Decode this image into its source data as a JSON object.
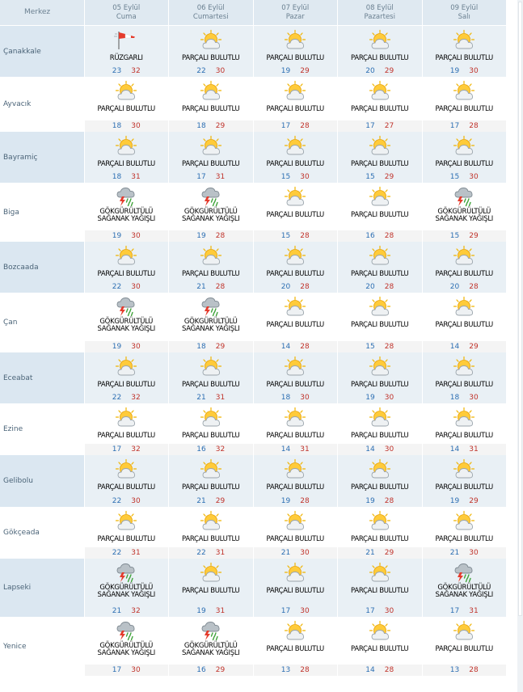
{
  "header": {
    "corner": "Merkez",
    "days": [
      {
        "date": "05 Eylül",
        "name": "Cuma"
      },
      {
        "date": "06 Eylül",
        "name": "Cumartesi"
      },
      {
        "date": "07 Eylül",
        "name": "Pazar"
      },
      {
        "date": "08 Eylül",
        "name": "Pazartesi"
      },
      {
        "date": "09 Eylül",
        "name": "Salı"
      }
    ]
  },
  "rows": [
    {
      "city": "Çanakkale",
      "cells": [
        {
          "icon": "wind-sock-icon",
          "cond": [
            "RÜZGARLI"
          ],
          "min": "23",
          "max": "32"
        },
        {
          "icon": "partly-cloudy-icon",
          "cond": [
            "PARÇALI BULUTLU"
          ],
          "min": "22",
          "max": "30"
        },
        {
          "icon": "partly-cloudy-icon",
          "cond": [
            "PARÇALI BULUTLU"
          ],
          "min": "19",
          "max": "29"
        },
        {
          "icon": "partly-cloudy-icon",
          "cond": [
            "PARÇALI BULUTLU"
          ],
          "min": "20",
          "max": "29"
        },
        {
          "icon": "partly-cloudy-icon",
          "cond": [
            "PARÇALI BULUTLU"
          ],
          "min": "19",
          "max": "30"
        }
      ]
    },
    {
      "city": "Ayvacık",
      "cells": [
        {
          "icon": "partly-cloudy-icon",
          "cond": [
            "PARÇALI BULUTLU"
          ],
          "min": "18",
          "max": "30"
        },
        {
          "icon": "partly-cloudy-icon",
          "cond": [
            "PARÇALI BULUTLU"
          ],
          "min": "18",
          "max": "29"
        },
        {
          "icon": "partly-cloudy-icon",
          "cond": [
            "PARÇALI BULUTLU"
          ],
          "min": "17",
          "max": "28"
        },
        {
          "icon": "partly-cloudy-icon",
          "cond": [
            "PARÇALI BULUTLU"
          ],
          "min": "17",
          "max": "27"
        },
        {
          "icon": "partly-cloudy-icon",
          "cond": [
            "PARÇALI BULUTLU"
          ],
          "min": "17",
          "max": "28"
        }
      ]
    },
    {
      "city": "Bayramiç",
      "cells": [
        {
          "icon": "partly-cloudy-icon",
          "cond": [
            "PARÇALI BULUTLU"
          ],
          "min": "18",
          "max": "31"
        },
        {
          "icon": "partly-cloudy-icon",
          "cond": [
            "PARÇALI BULUTLU"
          ],
          "min": "17",
          "max": "31"
        },
        {
          "icon": "partly-cloudy-icon",
          "cond": [
            "PARÇALI BULUTLU"
          ],
          "min": "15",
          "max": "30"
        },
        {
          "icon": "partly-cloudy-icon",
          "cond": [
            "PARÇALI BULUTLU"
          ],
          "min": "15",
          "max": "29"
        },
        {
          "icon": "partly-cloudy-icon",
          "cond": [
            "PARÇALI BULUTLU"
          ],
          "min": "15",
          "max": "30"
        }
      ]
    },
    {
      "city": "Biga",
      "cells": [
        {
          "icon": "thunderstorm-icon",
          "cond": [
            "GÖKGÜRÜLTÜLÜ",
            "SAĞANAK YAĞIŞLI"
          ],
          "min": "19",
          "max": "30"
        },
        {
          "icon": "thunderstorm-icon",
          "cond": [
            "GÖKGÜRÜLTÜLÜ",
            "SAĞANAK YAĞIŞLI"
          ],
          "min": "19",
          "max": "28"
        },
        {
          "icon": "partly-cloudy-icon",
          "cond": [
            "PARÇALI BULUTLU"
          ],
          "min": "15",
          "max": "28"
        },
        {
          "icon": "partly-cloudy-icon",
          "cond": [
            "PARÇALI BULUTLU"
          ],
          "min": "16",
          "max": "28"
        },
        {
          "icon": "thunderstorm-icon",
          "cond": [
            "GÖKGÜRÜLTÜLÜ",
            "SAĞANAK YAĞIŞLI"
          ],
          "min": "15",
          "max": "29"
        }
      ]
    },
    {
      "city": "Bozcaada",
      "cells": [
        {
          "icon": "partly-cloudy-icon",
          "cond": [
            "PARÇALI BULUTLU"
          ],
          "min": "22",
          "max": "30"
        },
        {
          "icon": "partly-cloudy-icon",
          "cond": [
            "PARÇALI BULUTLU"
          ],
          "min": "21",
          "max": "28"
        },
        {
          "icon": "partly-cloudy-icon",
          "cond": [
            "PARÇALI BULUTLU"
          ],
          "min": "20",
          "max": "28"
        },
        {
          "icon": "partly-cloudy-icon",
          "cond": [
            "PARÇALI BULUTLU"
          ],
          "min": "20",
          "max": "28"
        },
        {
          "icon": "partly-cloudy-icon",
          "cond": [
            "PARÇALI BULUTLU"
          ],
          "min": "20",
          "max": "28"
        }
      ]
    },
    {
      "city": "Çan",
      "cells": [
        {
          "icon": "thunderstorm-icon",
          "cond": [
            "GÖKGÜRÜLTÜLÜ",
            "SAĞANAK YAĞIŞLI"
          ],
          "min": "19",
          "max": "30"
        },
        {
          "icon": "thunderstorm-icon",
          "cond": [
            "GÖKGÜRÜLTÜLÜ",
            "SAĞANAK YAĞIŞLI"
          ],
          "min": "18",
          "max": "29"
        },
        {
          "icon": "partly-cloudy-icon",
          "cond": [
            "PARÇALI BULUTLU"
          ],
          "min": "14",
          "max": "28"
        },
        {
          "icon": "partly-cloudy-icon",
          "cond": [
            "PARÇALI BULUTLU"
          ],
          "min": "15",
          "max": "28"
        },
        {
          "icon": "partly-cloudy-icon",
          "cond": [
            "PARÇALI BULUTLU"
          ],
          "min": "14",
          "max": "29"
        }
      ]
    },
    {
      "city": "Eceabat",
      "cells": [
        {
          "icon": "partly-cloudy-icon",
          "cond": [
            "PARÇALI BULUTLU"
          ],
          "min": "22",
          "max": "32"
        },
        {
          "icon": "partly-cloudy-icon",
          "cond": [
            "PARÇALI BULUTLU"
          ],
          "min": "21",
          "max": "31"
        },
        {
          "icon": "partly-cloudy-icon",
          "cond": [
            "PARÇALI BULUTLU"
          ],
          "min": "18",
          "max": "30"
        },
        {
          "icon": "partly-cloudy-icon",
          "cond": [
            "PARÇALI BULUTLU"
          ],
          "min": "19",
          "max": "30"
        },
        {
          "icon": "partly-cloudy-icon",
          "cond": [
            "PARÇALI BULUTLU"
          ],
          "min": "18",
          "max": "30"
        }
      ]
    },
    {
      "city": "Ezine",
      "cells": [
        {
          "icon": "partly-cloudy-icon",
          "cond": [
            "PARÇALI BULUTLU"
          ],
          "min": "17",
          "max": "32"
        },
        {
          "icon": "partly-cloudy-icon",
          "cond": [
            "PARÇALI BULUTLU"
          ],
          "min": "16",
          "max": "32"
        },
        {
          "icon": "partly-cloudy-icon",
          "cond": [
            "PARÇALI BULUTLU"
          ],
          "min": "14",
          "max": "31"
        },
        {
          "icon": "partly-cloudy-icon",
          "cond": [
            "PARÇALI BULUTLU"
          ],
          "min": "14",
          "max": "30"
        },
        {
          "icon": "partly-cloudy-icon",
          "cond": [
            "PARÇALI BULUTLU"
          ],
          "min": "14",
          "max": "31"
        }
      ]
    },
    {
      "city": "Gelibolu",
      "cells": [
        {
          "icon": "partly-cloudy-icon",
          "cond": [
            "PARÇALI BULUTLU"
          ],
          "min": "22",
          "max": "30"
        },
        {
          "icon": "partly-cloudy-icon",
          "cond": [
            "PARÇALI BULUTLU"
          ],
          "min": "21",
          "max": "29"
        },
        {
          "icon": "partly-cloudy-icon",
          "cond": [
            "PARÇALI BULUTLU"
          ],
          "min": "19",
          "max": "28"
        },
        {
          "icon": "partly-cloudy-icon",
          "cond": [
            "PARÇALI BULUTLU"
          ],
          "min": "19",
          "max": "28"
        },
        {
          "icon": "partly-cloudy-icon",
          "cond": [
            "PARÇALI BULUTLU"
          ],
          "min": "19",
          "max": "29"
        }
      ]
    },
    {
      "city": "Gökçeada",
      "cells": [
        {
          "icon": "partly-cloudy-icon",
          "cond": [
            "PARÇALI BULUTLU"
          ],
          "min": "22",
          "max": "31"
        },
        {
          "icon": "partly-cloudy-icon",
          "cond": [
            "PARÇALI BULUTLU"
          ],
          "min": "22",
          "max": "31"
        },
        {
          "icon": "partly-cloudy-icon",
          "cond": [
            "PARÇALI BULUTLU"
          ],
          "min": "21",
          "max": "30"
        },
        {
          "icon": "partly-cloudy-icon",
          "cond": [
            "PARÇALI BULUTLU"
          ],
          "min": "21",
          "max": "29"
        },
        {
          "icon": "partly-cloudy-icon",
          "cond": [
            "PARÇALI BULUTLU"
          ],
          "min": "21",
          "max": "30"
        }
      ]
    },
    {
      "city": "Lapseki",
      "cells": [
        {
          "icon": "thunderstorm-icon",
          "cond": [
            "GÖKGÜRÜLTÜLÜ",
            "SAĞANAK YAĞIŞLI"
          ],
          "min": "21",
          "max": "32"
        },
        {
          "icon": "partly-cloudy-icon",
          "cond": [
            "PARÇALI BULUTLU"
          ],
          "min": "19",
          "max": "31"
        },
        {
          "icon": "partly-cloudy-icon",
          "cond": [
            "PARÇALI BULUTLU"
          ],
          "min": "17",
          "max": "30"
        },
        {
          "icon": "partly-cloudy-icon",
          "cond": [
            "PARÇALI BULUTLU"
          ],
          "min": "17",
          "max": "30"
        },
        {
          "icon": "thunderstorm-icon",
          "cond": [
            "GÖKGÜRÜLTÜLÜ",
            "SAĞANAK YAĞIŞLI"
          ],
          "min": "17",
          "max": "31"
        }
      ]
    },
    {
      "city": "Yenice",
      "cells": [
        {
          "icon": "thunderstorm-icon",
          "cond": [
            "GÖKGÜRÜLTÜLÜ",
            "SAĞANAK YAĞIŞLI"
          ],
          "min": "17",
          "max": "30"
        },
        {
          "icon": "thunderstorm-icon",
          "cond": [
            "GÖKGÜRÜLTÜLÜ",
            "SAĞANAK YAĞIŞLI"
          ],
          "min": "16",
          "max": "29"
        },
        {
          "icon": "partly-cloudy-icon",
          "cond": [
            "PARÇALI BULUTLU"
          ],
          "min": "13",
          "max": "28"
        },
        {
          "icon": "partly-cloudy-icon",
          "cond": [
            "PARÇALI BULUTLU"
          ],
          "min": "14",
          "max": "28"
        },
        {
          "icon": "partly-cloudy-icon",
          "cond": [
            "PARÇALI BULUTLU"
          ],
          "min": "13",
          "max": "28"
        }
      ]
    }
  ],
  "colors": {
    "min_temp": "#2d6fb3",
    "max_temp": "#c0332b",
    "header_bg": "#dfe9f1",
    "row_alt_bg": "#e9f0f5"
  }
}
